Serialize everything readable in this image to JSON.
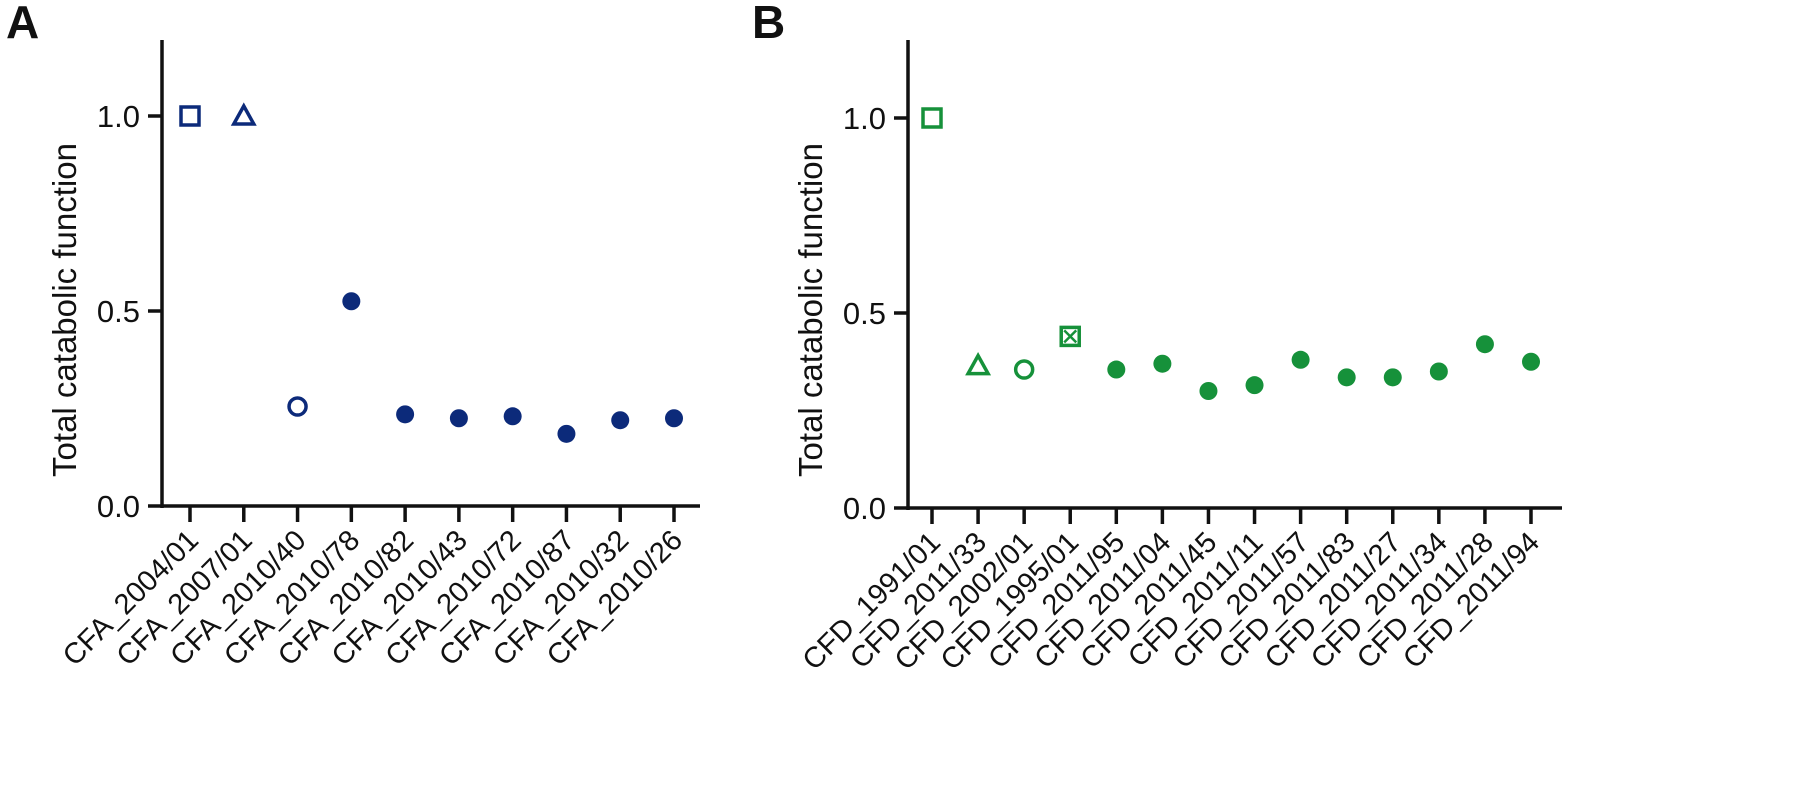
{
  "chart_data": [
    {
      "panel": "A",
      "type": "scatter",
      "ylabel": "Total catabolic function",
      "ylim": [
        0,
        1.2
      ],
      "yticks": [
        0.0,
        0.5,
        1.0
      ],
      "ytick_labels": [
        "0.0",
        "0.5",
        "1.0"
      ],
      "color": "#0c2a7a",
      "grid": false,
      "categories": [
        "CFA_2004/01",
        "CFA_2007/01",
        "CFA_2010/40",
        "CFA_2010/78",
        "CFA_2010/82",
        "CFA_2010/43",
        "CFA_2010/72",
        "CFA_2010/87",
        "CFA_2010/32",
        "CFA_2010/26"
      ],
      "values": [
        1.0,
        1.0,
        0.255,
        0.525,
        0.235,
        0.225,
        0.23,
        0.185,
        0.22,
        0.225
      ],
      "markers": [
        "square-open",
        "triangle-open",
        "circle-open",
        "circle-filled",
        "circle-filled",
        "circle-filled",
        "circle-filled",
        "circle-filled",
        "circle-filled",
        "circle-filled"
      ]
    },
    {
      "panel": "B",
      "type": "scatter",
      "ylabel": "Total catabolic function",
      "ylim": [
        0,
        1.2
      ],
      "yticks": [
        0.0,
        0.5,
        1.0
      ],
      "ytick_labels": [
        "0.0",
        "0.5",
        "1.0"
      ],
      "color": "#16913a",
      "grid": false,
      "categories": [
        "CFD_1991/01",
        "CFD_2011/33",
        "CFD_2002/01",
        "CFD_1995/01",
        "CFD_2011/95",
        "CFD_2011/04",
        "CFD_2011/45",
        "CFD_2011/11",
        "CFD_2011/57",
        "CFD_2011/83",
        "CFD_2011/27",
        "CFD_2011/34",
        "CFD_2011/28",
        "CFD_2011/94"
      ],
      "values": [
        1.0,
        0.365,
        0.355,
        0.44,
        0.355,
        0.37,
        0.3,
        0.315,
        0.38,
        0.335,
        0.335,
        0.35,
        0.42,
        0.375
      ],
      "markers": [
        "square-open",
        "triangle-open",
        "circle-open",
        "square-x",
        "circle-filled",
        "circle-filled",
        "circle-filled",
        "circle-filled",
        "circle-filled",
        "circle-filled",
        "circle-filled",
        "circle-filled",
        "circle-filled",
        "circle-filled"
      ]
    }
  ]
}
